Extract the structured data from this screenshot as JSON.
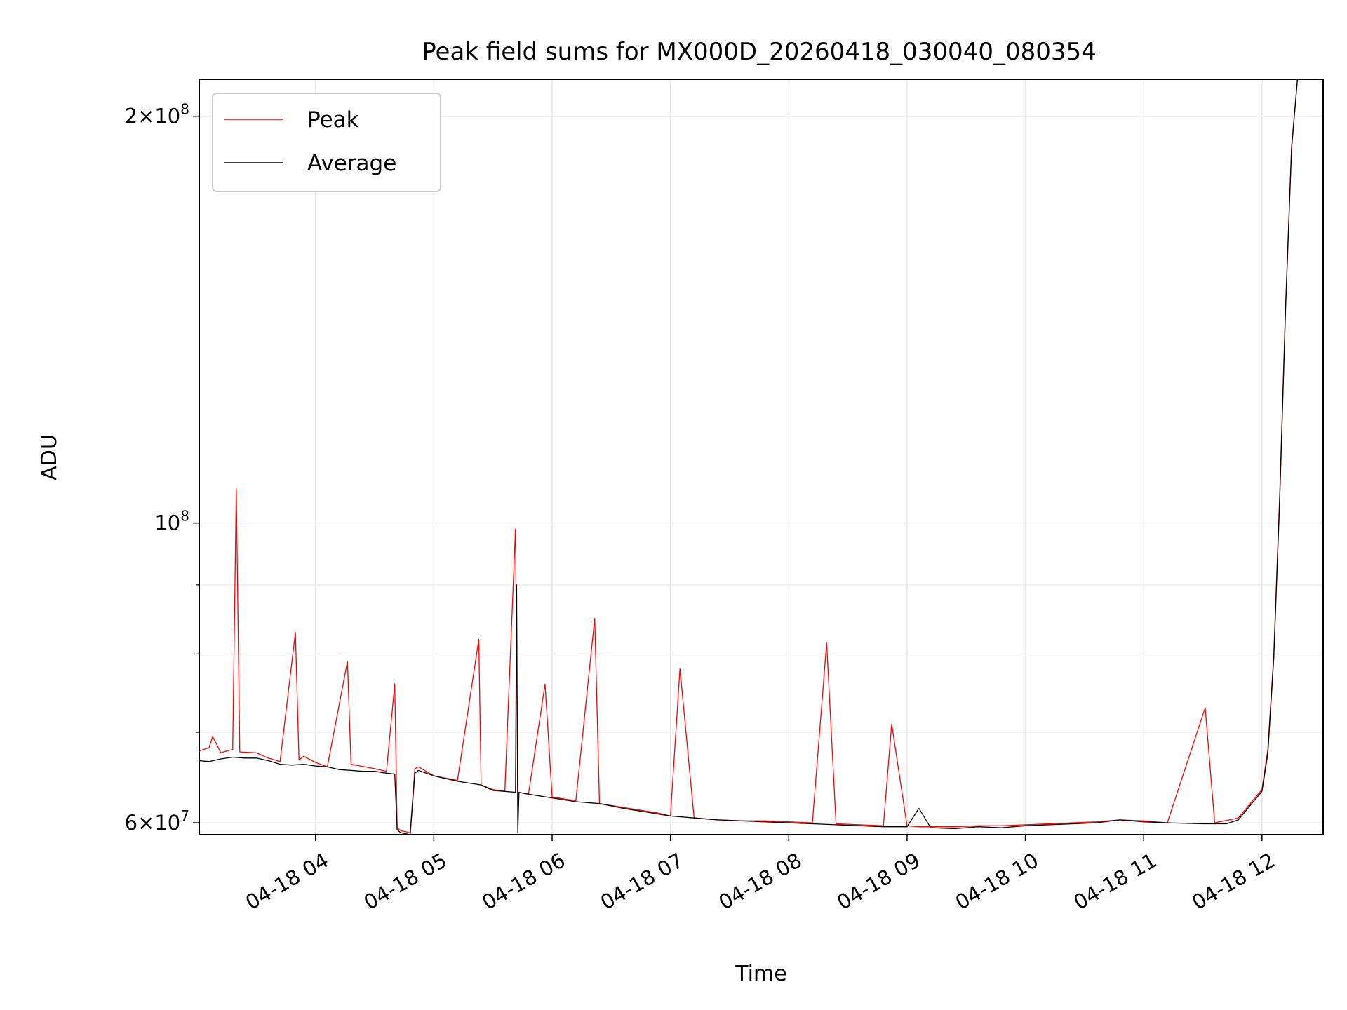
{
  "chart_data": {
    "type": "line",
    "title": "Peak field sums for MX000D_20260418_030040_080354",
    "xlabel": "Time",
    "ylabel": "ADU",
    "yscale": "log",
    "xlim": [
      3.017,
      12.517
    ],
    "ylim": [
      58800000,
      213000000
    ],
    "grid": true,
    "legend_position": "top-left",
    "x_ticks": [
      {
        "value": 4,
        "label": "04-18 04"
      },
      {
        "value": 5,
        "label": "04-18 05"
      },
      {
        "value": 6,
        "label": "04-18 06"
      },
      {
        "value": 7,
        "label": "04-18 07"
      },
      {
        "value": 8,
        "label": "04-18 08"
      },
      {
        "value": 9,
        "label": "04-18 09"
      },
      {
        "value": 10,
        "label": "04-18 10"
      },
      {
        "value": 11,
        "label": "04-18 11"
      },
      {
        "value": 12,
        "label": "04-18 12"
      }
    ],
    "y_major_ticks": [
      {
        "value": 60000000,
        "base": "6×10",
        "exp": "7"
      },
      {
        "value": 100000000,
        "base": "10",
        "exp": "8"
      },
      {
        "value": 200000000,
        "base": "2×10",
        "exp": "8"
      }
    ],
    "y_minor_ticks": [
      70000000,
      80000000,
      90000000
    ],
    "series": [
      {
        "name": "Peak",
        "color": "#ff0000",
        "x": [
          3.017,
          3.1,
          3.13,
          3.2,
          3.3,
          3.33,
          3.36,
          3.5,
          3.6,
          3.7,
          3.83,
          3.86,
          3.9,
          4.0,
          4.1,
          4.27,
          4.3,
          4.5,
          4.6,
          4.67,
          4.69,
          4.72,
          4.8,
          4.84,
          4.87,
          5.0,
          5.2,
          5.38,
          5.4,
          5.5,
          5.6,
          5.69,
          5.71,
          5.8,
          5.94,
          6.0,
          6.2,
          6.36,
          6.4,
          6.6,
          6.8,
          6.9,
          7.0,
          7.08,
          7.2,
          7.4,
          7.6,
          7.8,
          8.0,
          8.2,
          8.32,
          8.4,
          8.6,
          8.8,
          8.87,
          9.0,
          9.1,
          9.2,
          9.4,
          9.6,
          9.8,
          10.0,
          10.2,
          10.6,
          10.8,
          11.0,
          11.2,
          11.52,
          11.6,
          11.8,
          11.9,
          12.0,
          12.05,
          12.1,
          12.15,
          12.2,
          12.25,
          12.3,
          12.33
        ],
        "y": [
          67800000,
          68200000,
          69500000,
          67600000,
          68000000,
          106000000,
          67700000,
          67600000,
          67000000,
          66600000,
          83000000,
          66800000,
          67200000,
          66500000,
          66000000,
          79000000,
          66300000,
          65800000,
          65500000,
          76000000,
          59500000,
          59200000,
          59000000,
          65800000,
          66000000,
          65000000,
          64500000,
          82000000,
          64000000,
          63500000,
          63300000,
          99000000,
          63200000,
          63000000,
          76000000,
          62700000,
          62300000,
          85000000,
          62000000,
          61600000,
          61200000,
          61000000,
          60700000,
          78000000,
          60500000,
          60300000,
          60200000,
          60200000,
          60100000,
          60000000,
          81500000,
          59900000,
          59800000,
          59700000,
          71000000,
          59700000,
          59600000,
          59600000,
          59600000,
          59700000,
          59700000,
          59800000,
          59900000,
          60100000,
          60300000,
          60200000,
          60000000,
          73000000,
          60000000,
          60500000,
          62000000,
          63500000,
          68000000,
          80000000,
          105000000,
          145000000,
          190000000,
          213000000,
          213000000
        ]
      },
      {
        "name": "Average",
        "color": "#000000",
        "x": [
          3.017,
          3.1,
          3.2,
          3.3,
          3.4,
          3.5,
          3.6,
          3.7,
          3.8,
          3.9,
          4.0,
          4.1,
          4.2,
          4.3,
          4.4,
          4.5,
          4.6,
          4.67,
          4.69,
          4.72,
          4.8,
          4.84,
          4.87,
          5.0,
          5.2,
          5.4,
          5.5,
          5.6,
          5.69,
          5.7,
          5.71,
          5.72,
          5.8,
          6.0,
          6.2,
          6.4,
          6.6,
          6.8,
          7.0,
          7.2,
          7.4,
          7.6,
          7.8,
          8.0,
          8.2,
          8.4,
          8.6,
          8.8,
          9.0,
          9.1,
          9.2,
          9.4,
          9.6,
          9.8,
          10.0,
          10.2,
          10.6,
          10.8,
          11.0,
          11.2,
          11.5,
          11.7,
          11.8,
          11.9,
          12.0,
          12.05,
          12.1,
          12.15,
          12.2,
          12.25,
          12.3,
          12.33
        ],
        "y": [
          66700000,
          66600000,
          66900000,
          67100000,
          67000000,
          67000000,
          66700000,
          66300000,
          66200000,
          66300000,
          66100000,
          66000000,
          65700000,
          65600000,
          65500000,
          65500000,
          65300000,
          65200000,
          59300000,
          59000000,
          58800000,
          65300000,
          65600000,
          65000000,
          64400000,
          64000000,
          63400000,
          63300000,
          63200000,
          90000000,
          59000000,
          63200000,
          63000000,
          62600000,
          62200000,
          62000000,
          61500000,
          61100000,
          60700000,
          60500000,
          60300000,
          60200000,
          60100000,
          60000000,
          59900000,
          59800000,
          59700000,
          59600000,
          59600000,
          61500000,
          59500000,
          59400000,
          59600000,
          59500000,
          59700000,
          59800000,
          60000000,
          60300000,
          60100000,
          60000000,
          59900000,
          59900000,
          60300000,
          61800000,
          63300000,
          67500000,
          79500000,
          104000000,
          144000000,
          189000000,
          213000000,
          213000000
        ]
      }
    ]
  }
}
